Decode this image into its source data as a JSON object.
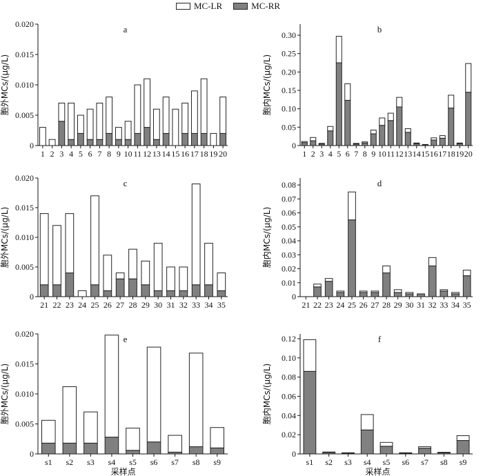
{
  "legend": {
    "items": [
      {
        "label": "MC-LR",
        "color": "#ffffff"
      },
      {
        "label": "MC-RR",
        "color": "#808080"
      }
    ],
    "placement": "top-center"
  },
  "chart_data": [
    {
      "type": "bar",
      "stacked": true,
      "panel_label": "a",
      "categories": [
        "1",
        "2",
        "3",
        "4",
        "5",
        "6",
        "7",
        "8",
        "9",
        "10",
        "11",
        "12",
        "13",
        "14",
        "15",
        "16",
        "17",
        "18",
        "19",
        "20"
      ],
      "series": [
        {
          "name": "MC-RR",
          "values": [
            0,
            0,
            0.004,
            0.001,
            0.002,
            0.001,
            0.001,
            0.002,
            0.001,
            0.001,
            0.002,
            0.003,
            0.001,
            0.002,
            0,
            0.002,
            0.002,
            0.002,
            0,
            0.002
          ]
        },
        {
          "name": "MC-LR",
          "values": [
            0.003,
            0.001,
            0.003,
            0.006,
            0.003,
            0.005,
            0.006,
            0.006,
            0.002,
            0.003,
            0.008,
            0.008,
            0.005,
            0.006,
            0.006,
            0.005,
            0.007,
            0.009,
            0.002,
            0.006
          ]
        }
      ],
      "ylabel": "胞外MCs/(μg/L)",
      "xlabel": "",
      "ylim": [
        0,
        0.02
      ],
      "yticks": [
        "0",
        "0.005",
        "0.010",
        "0.015",
        "0.020"
      ],
      "grid": false
    },
    {
      "type": "bar",
      "stacked": true,
      "panel_label": "b",
      "categories": [
        "1",
        "2",
        "3",
        "4",
        "5",
        "6",
        "7",
        "8",
        "9",
        "10",
        "11",
        "12",
        "13",
        "14",
        "15",
        "16",
        "17",
        "18",
        "19",
        "20"
      ],
      "series": [
        {
          "name": "MC-RR",
          "values": [
            0.008,
            0.013,
            0.004,
            0.04,
            0.225,
            0.123,
            0.004,
            0.007,
            0.032,
            0.055,
            0.068,
            0.105,
            0.036,
            0.005,
            0.002,
            0.015,
            0.02,
            0.102,
            0.005,
            0.145
          ]
        },
        {
          "name": "MC-LR",
          "values": [
            0.003,
            0.009,
            0.002,
            0.012,
            0.072,
            0.045,
            0.002,
            0.003,
            0.01,
            0.02,
            0.02,
            0.026,
            0.01,
            0.002,
            0.001,
            0.006,
            0.007,
            0.035,
            0.002,
            0.078
          ]
        }
      ],
      "ylabel": "胞内MCs/(μg/L)",
      "xlabel": "",
      "ylim": [
        0,
        0.33
      ],
      "yticks": [
        "0",
        "0.05",
        "0.10",
        "0.15",
        "0.20",
        "0.25",
        "0.30"
      ],
      "grid": false
    },
    {
      "type": "bar",
      "stacked": true,
      "panel_label": "c",
      "categories": [
        "21",
        "22",
        "23",
        "24",
        "25",
        "26",
        "27",
        "28",
        "29",
        "30",
        "31",
        "32",
        "33",
        "34",
        "35"
      ],
      "series": [
        {
          "name": "MC-RR",
          "values": [
            0.002,
            0.002,
            0.004,
            0,
            0.002,
            0.001,
            0.003,
            0.003,
            0.002,
            0.001,
            0.001,
            0.001,
            0.002,
            0.002,
            0.001
          ]
        },
        {
          "name": "MC-LR",
          "values": [
            0.012,
            0.01,
            0.01,
            0.001,
            0.015,
            0.006,
            0.001,
            0.005,
            0.004,
            0.008,
            0.004,
            0.004,
            0.017,
            0.007,
            0.003
          ]
        }
      ],
      "ylabel": "胞外MCs/(μg/L)",
      "xlabel": "",
      "ylim": [
        0,
        0.02
      ],
      "yticks": [
        "0",
        "0.005",
        "0.010",
        "0.015",
        "0.020"
      ],
      "grid": false
    },
    {
      "type": "bar",
      "stacked": true,
      "panel_label": "d",
      "categories": [
        "21",
        "22",
        "23",
        "24",
        "25",
        "26",
        "27",
        "28",
        "29",
        "30",
        "31",
        "32",
        "33",
        "34",
        "35"
      ],
      "series": [
        {
          "name": "MC-RR",
          "values": [
            0,
            0.007,
            0.011,
            0.003,
            0.055,
            0.003,
            0.003,
            0.017,
            0.003,
            0.002,
            0.002,
            0.022,
            0.004,
            0.002,
            0.015
          ]
        },
        {
          "name": "MC-LR",
          "values": [
            0,
            0.002,
            0.002,
            0.001,
            0.02,
            0.001,
            0.001,
            0.005,
            0.002,
            0.001,
            0,
            0.006,
            0.001,
            0.001,
            0.004
          ]
        }
      ],
      "ylabel": "胞内MCs/(μg/L)",
      "xlabel": "",
      "ylim": [
        0,
        0.085
      ],
      "yticks": [
        "0",
        "0.01",
        "0.02",
        "0.03",
        "0.04",
        "0.05",
        "0.06",
        "0.07",
        "0.08"
      ],
      "grid": false
    },
    {
      "type": "bar",
      "stacked": true,
      "panel_label": "e",
      "categories": [
        "s1",
        "s2",
        "s3",
        "s4",
        "s5",
        "s6",
        "s7",
        "s8",
        "s9"
      ],
      "series": [
        {
          "name": "MC-RR",
          "values": [
            0.0018,
            0.0018,
            0.0018,
            0.0028,
            0.0006,
            0.002,
            0.0003,
            0.0012,
            0.001
          ]
        },
        {
          "name": "MC-LR",
          "values": [
            0.0038,
            0.0094,
            0.0052,
            0.017,
            0.0037,
            0.0158,
            0.0028,
            0.0156,
            0.0034
          ]
        }
      ],
      "ylabel": "胞外MCs/(μg/L)",
      "xlabel": "采样点",
      "ylim": [
        0,
        0.02
      ],
      "yticks": [
        "0",
        "0.005",
        "0.010",
        "0.015",
        "0.020"
      ],
      "grid": false
    },
    {
      "type": "bar",
      "stacked": true,
      "panel_label": "f",
      "categories": [
        "s1",
        "s2",
        "s3",
        "s4",
        "s5",
        "s6",
        "s7",
        "s8",
        "s9"
      ],
      "series": [
        {
          "name": "MC-RR",
          "values": [
            0.086,
            0.0015,
            0.0008,
            0.025,
            0.008,
            0.0008,
            0.006,
            0.0012,
            0.014
          ]
        },
        {
          "name": "MC-LR",
          "values": [
            0.033,
            0.0005,
            0.0004,
            0.016,
            0.004,
            0.0004,
            0.0015,
            0.0005,
            0.005
          ]
        }
      ],
      "ylabel": "胞内MCs/(μg/L)",
      "xlabel": "采样点",
      "ylim": [
        0,
        0.125
      ],
      "yticks": [
        "0",
        "0.02",
        "0.04",
        "0.06",
        "0.08",
        "0.10",
        "0.12"
      ],
      "grid": false
    }
  ]
}
